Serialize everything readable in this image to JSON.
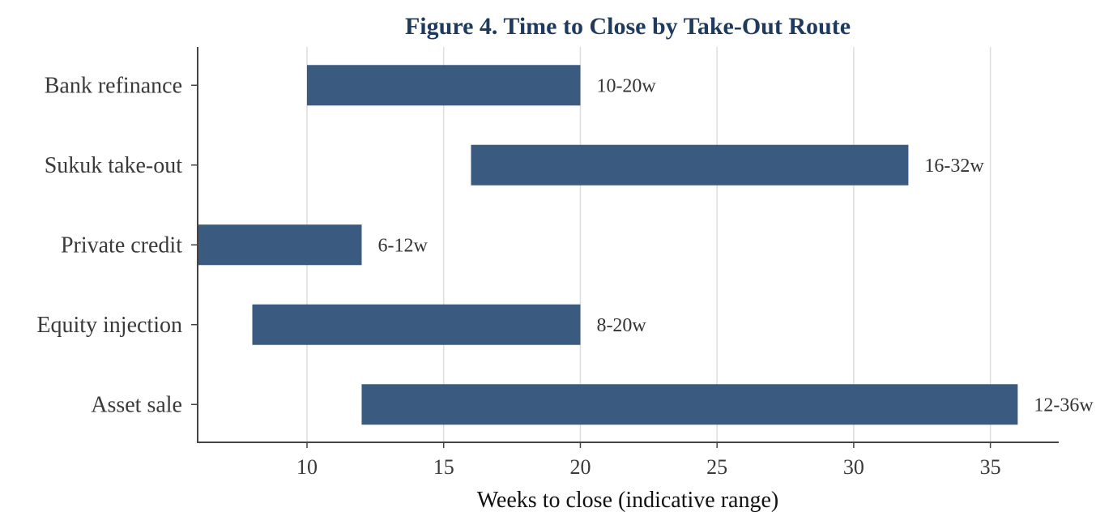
{
  "chart_data": {
    "type": "bar",
    "orientation": "horizontal",
    "title": "Figure 4. Time to Close by Take-Out Route",
    "xlabel": "Weeks to close (indicative range)",
    "ylabel": "",
    "categories": [
      "Bank refinance",
      "Sukuk take-out",
      "Private credit",
      "Equity injection",
      "Asset sale"
    ],
    "series": [
      {
        "starts": [
          10,
          16,
          6,
          8,
          12
        ],
        "ends": [
          20,
          32,
          12,
          20,
          36
        ],
        "labels": [
          "10-20w",
          "16-32w",
          "6-12w",
          "8-20w",
          "12-36w"
        ]
      }
    ],
    "xlim": [
      6,
      37.5
    ],
    "xticks": [
      10,
      15,
      20,
      25,
      30,
      35
    ],
    "grid": "vertical",
    "legend": "none",
    "bar_color": "#3b5a7f",
    "title_color": "#1f3a5f"
  }
}
